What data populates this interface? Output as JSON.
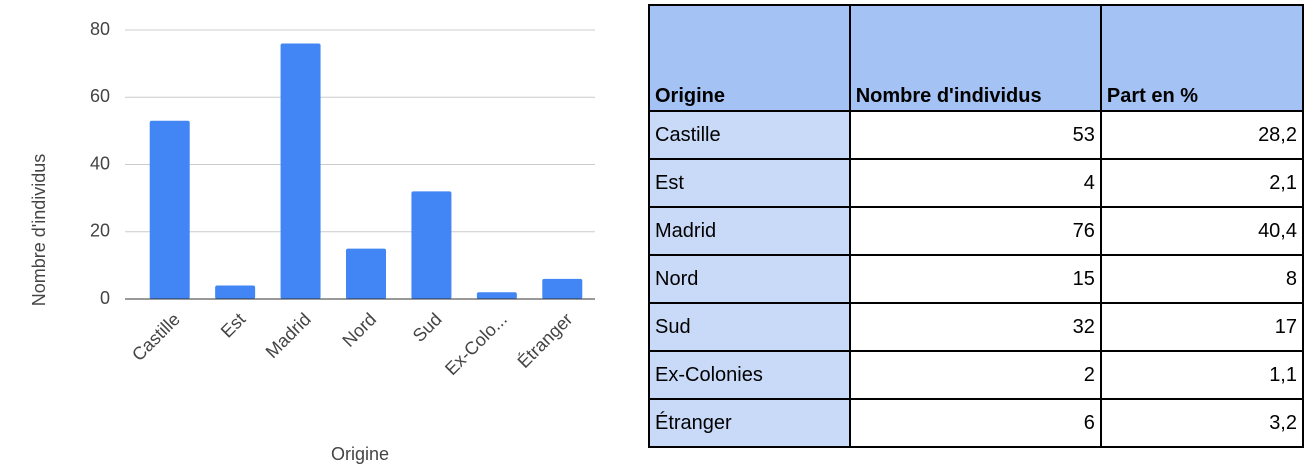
{
  "chart_data": {
    "type": "bar",
    "xlabel": "Origine",
    "ylabel": "Nombre d'individus",
    "categories": [
      "Castille",
      "Est",
      "Madrid",
      "Nord",
      "Sud",
      "Ex-Colo...",
      "Étranger"
    ],
    "values": [
      53,
      4,
      76,
      15,
      32,
      2,
      6
    ],
    "color": "#4285f4",
    "ylim": [
      0,
      80
    ],
    "yticks": [
      0,
      20,
      40,
      60,
      80
    ],
    "grid": true
  },
  "table": {
    "header": [
      "Origine",
      "Nombre d'individus",
      "Part en %"
    ],
    "rows": [
      [
        "Castille",
        "53",
        "28,2"
      ],
      [
        "Est",
        "4",
        "2,1"
      ],
      [
        "Madrid",
        "76",
        "40,4"
      ],
      [
        "Nord",
        "15",
        "8"
      ],
      [
        "Sud",
        "32",
        "17"
      ],
      [
        "Ex-Colonies",
        "2",
        "1,1"
      ],
      [
        "Étranger",
        "6",
        "3,2"
      ]
    ]
  }
}
